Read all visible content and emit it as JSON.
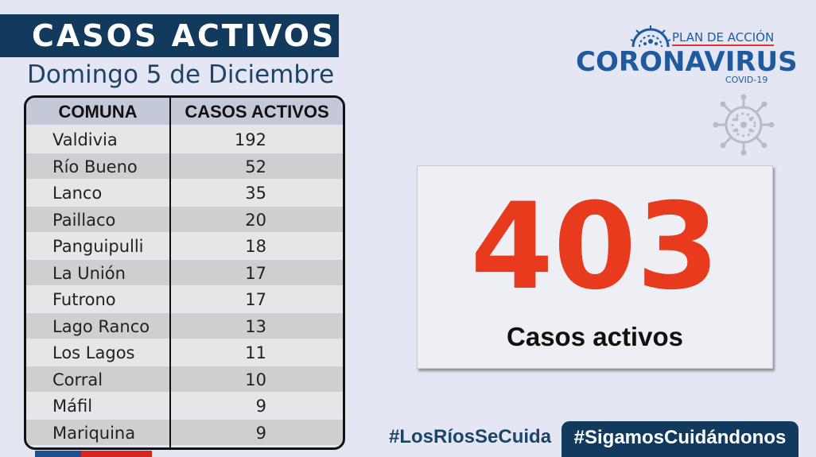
{
  "header": {
    "title": "CASOS ACTIVOS",
    "date": "Domingo 5 de Diciembre"
  },
  "table": {
    "columns": [
      "COMUNA",
      "CASOS ACTIVOS"
    ],
    "rows": [
      {
        "comuna": "Valdivia",
        "casos": "192"
      },
      {
        "comuna": "Río Bueno",
        "casos": "52"
      },
      {
        "comuna": "Lanco",
        "casos": "35"
      },
      {
        "comuna": "Paillaco",
        "casos": "20"
      },
      {
        "comuna": "Panguipulli",
        "casos": "18"
      },
      {
        "comuna": "La Unión",
        "casos": "17"
      },
      {
        "comuna": "Futrono",
        "casos": "17"
      },
      {
        "comuna": "Lago Ranco",
        "casos": "13"
      },
      {
        "comuna": "Los Lagos",
        "casos": "11"
      },
      {
        "comuna": "Corral",
        "casos": "10"
      },
      {
        "comuna": "Máfil",
        "casos": "9"
      },
      {
        "comuna": "Mariquina",
        "casos": "9"
      }
    ]
  },
  "logo": {
    "top_text": "PLAN DE ACCIÓN",
    "main_text": "CORONAVIRUS",
    "sub_text": "COVID-19",
    "icon": "virus-icon"
  },
  "stat": {
    "value": "403",
    "label": "Casos activos"
  },
  "footer": {
    "hashtag1": "#LosRíosSeCuida",
    "hashtag2": "#SigamosCuidándonos"
  },
  "colors": {
    "navy": "#123a5c",
    "accent_red": "#e83a1d",
    "brand_blue": "#1f5a9e",
    "background": "#e4e7f3"
  }
}
